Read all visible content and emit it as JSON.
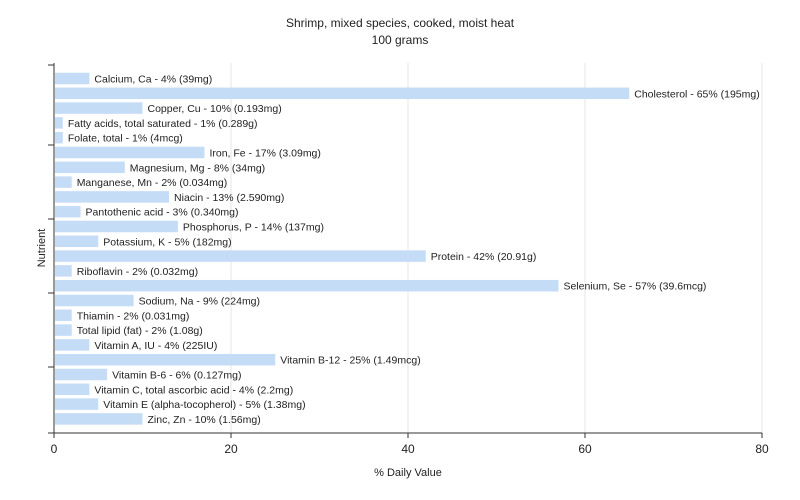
{
  "chart_data": {
    "type": "bar",
    "orientation": "horizontal",
    "title": "Shrimp, mixed species, cooked, moist heat",
    "subtitle": "100 grams",
    "xlabel": "% Daily Value",
    "ylabel": "Nutrient",
    "xlim": [
      0,
      80
    ],
    "xticks": [
      0,
      20,
      40,
      60,
      80
    ],
    "grid": true,
    "legend": "none",
    "colors": {
      "bar": "#c5dcf7",
      "grid": "#e6e6e6",
      "axis": "#333333",
      "text": "#222222"
    },
    "categories": [
      "Calcium, Ca",
      "Cholesterol",
      "Copper, Cu",
      "Fatty acids, total saturated",
      "Folate, total",
      "Iron, Fe",
      "Magnesium, Mg",
      "Manganese, Mn",
      "Niacin",
      "Pantothenic acid",
      "Phosphorus, P",
      "Potassium, K",
      "Protein",
      "Riboflavin",
      "Selenium, Se",
      "Sodium, Na",
      "Thiamin",
      "Total lipid (fat)",
      "Vitamin A, IU",
      "Vitamin B-12",
      "Vitamin B-6",
      "Vitamin C, total ascorbic acid",
      "Vitamin E (alpha-tocopherol)",
      "Zinc, Zn"
    ],
    "values": [
      4,
      65,
      10,
      1,
      1,
      17,
      8,
      2,
      13,
      3,
      14,
      5,
      42,
      2,
      57,
      9,
      2,
      2,
      4,
      25,
      6,
      4,
      5,
      10
    ],
    "labels": [
      "Calcium, Ca - 4% (39mg)",
      "Cholesterol - 65% (195mg)",
      "Copper, Cu - 10% (0.193mg)",
      "Fatty acids, total saturated - 1% (0.289g)",
      "Folate, total - 1% (4mcg)",
      "Iron, Fe - 17% (3.09mg)",
      "Magnesium, Mg - 8% (34mg)",
      "Manganese, Mn - 2% (0.034mg)",
      "Niacin - 13% (2.590mg)",
      "Pantothenic acid - 3% (0.340mg)",
      "Phosphorus, P - 14% (137mg)",
      "Potassium, K - 5% (182mg)",
      "Protein - 42% (20.91g)",
      "Riboflavin - 2% (0.032mg)",
      "Selenium, Se - 57% (39.6mcg)",
      "Sodium, Na - 9% (224mg)",
      "Thiamin - 2% (0.031mg)",
      "Total lipid (fat) - 2% (1.08g)",
      "Vitamin A, IU - 4% (225IU)",
      "Vitamin B-12 - 25% (1.49mcg)",
      "Vitamin B-6 - 6% (0.127mg)",
      "Vitamin C, total ascorbic acid - 4% (2.2mg)",
      "Vitamin E (alpha-tocopherol) - 5% (1.38mg)",
      "Zinc, Zn - 10% (1.56mg)"
    ]
  }
}
